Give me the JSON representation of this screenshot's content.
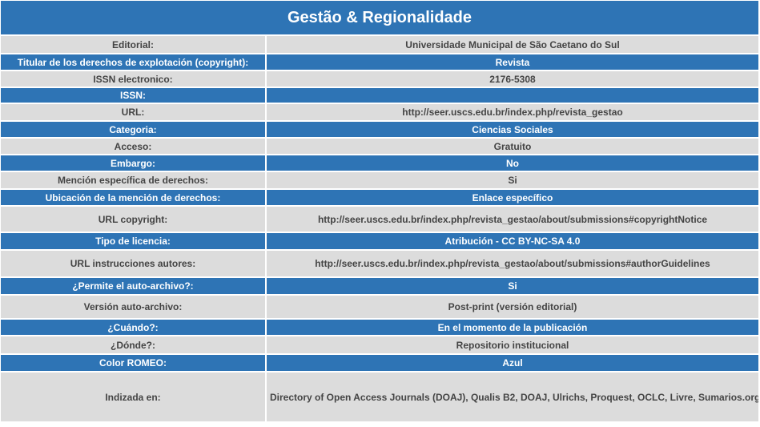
{
  "title": "Gestão & Regionalidade",
  "colors": {
    "header_blue": "#2e74b5",
    "row_gray": "#dcdcdc",
    "text_dark": "#444444"
  },
  "rows": [
    {
      "label": "Editorial:",
      "value": "Universidade Municipal de São Caetano do Sul",
      "style": "gray"
    },
    {
      "label": "Titular de los derechos de explotación (copyright):",
      "value": "Revista",
      "style": "blue"
    },
    {
      "label": "ISSN electronico:",
      "value": "2176-5308",
      "style": "gray"
    },
    {
      "label": "ISSN:",
      "value": "",
      "style": "blue"
    },
    {
      "label": "URL:",
      "value": "http://seer.uscs.edu.br/index.php/revista_gestao",
      "style": "gray"
    },
    {
      "label": "Categoria:",
      "value": "Ciencias Sociales",
      "style": "blue"
    },
    {
      "label": "Acceso:",
      "value": "Gratuito",
      "style": "gray"
    },
    {
      "label": "Embargo:",
      "value": "No",
      "style": "blue"
    },
    {
      "label": "Mención específica de derechos:",
      "value": "Si",
      "style": "gray"
    },
    {
      "label": "Ubicación de la mención de derechos:",
      "value": "Enlace específico",
      "style": "blue"
    },
    {
      "label": "URL copyright:",
      "value": "http://seer.uscs.edu.br/index.php/revista_gestao/about/submissions#copyrightNotice",
      "style": "gray"
    },
    {
      "label": "Tipo de licencia:",
      "value": "Atribución - CC BY-NC-SA 4.0",
      "style": "blue"
    },
    {
      "label": "URL instrucciones autores:",
      "value": "http://seer.uscs.edu.br/index.php/revista_gestao/about/submissions#authorGuidelines",
      "style": "gray"
    },
    {
      "label": "¿Permite el auto-archivo?:",
      "value": "Si",
      "style": "blue"
    },
    {
      "label": "Versión auto-archivo:",
      "value": "Post-print (versión editorial)",
      "style": "gray"
    },
    {
      "label": "¿Cuándo?:",
      "value": "En el momento de la publicación",
      "style": "blue"
    },
    {
      "label": "¿Dónde?:",
      "value": "Repositorio institucional",
      "style": "gray"
    },
    {
      "label": "Color ROMEO:",
      "value": "Azul",
      "style": "blue"
    },
    {
      "label": "Indizada en:",
      "value": "Directory of Open Access Journals (DOAJ), Qualis B2, DOAJ, Ulrichs, Proquest, OCLC, Livre, Sumarios.org",
      "style": "gray"
    }
  ]
}
